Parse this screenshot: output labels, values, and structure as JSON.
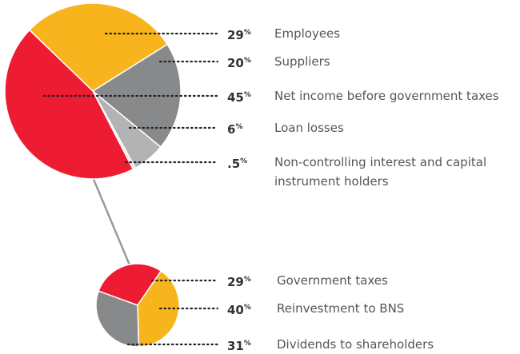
{
  "chart_data": [
    {
      "type": "pie",
      "categories": [
        "Employees",
        "Suppliers",
        "Loan losses",
        "Non-controlling interest and capital instrument holders",
        "Net income before government taxes"
      ],
      "values": [
        29,
        20,
        6,
        0.5,
        45
      ],
      "value_labels": [
        "29",
        "20",
        "6",
        ".5",
        "45"
      ],
      "unit": "%",
      "colors": [
        "#f8b41c",
        "#88898b",
        "#b2b3b5",
        "#e2e2e2",
        "#ee1c33"
      ]
    },
    {
      "type": "pie",
      "categories": [
        "Government taxes",
        "Reinvestment to BNS",
        "Dividends to shareholders"
      ],
      "values": [
        29,
        40,
        31
      ],
      "value_labels": [
        "29",
        "40",
        "31"
      ],
      "unit": "%",
      "colors": [
        "#ee1c33",
        "#f8b41c",
        "#88898b"
      ]
    }
  ]
}
